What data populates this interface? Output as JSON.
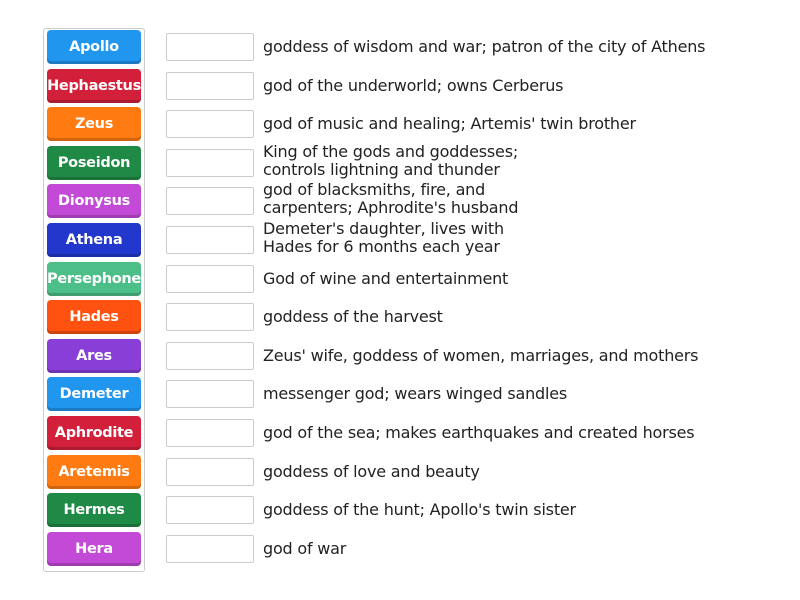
{
  "tiles": [
    {
      "label": "Apollo",
      "color": "#2196ef"
    },
    {
      "label": "Hephaestus",
      "color": "#d2203a"
    },
    {
      "label": "Zeus",
      "color": "#ff7a10"
    },
    {
      "label": "Poseidon",
      "color": "#1f8a45"
    },
    {
      "label": "Dionysus",
      "color": "#c24ad6"
    },
    {
      "label": "Athena",
      "color": "#2238cc"
    },
    {
      "label": "Persephone",
      "color": "#4cbf88"
    },
    {
      "label": "Hades",
      "color": "#ff5210"
    },
    {
      "label": "Ares",
      "color": "#8a3ed8"
    },
    {
      "label": "Demeter",
      "color": "#2196ef"
    },
    {
      "label": "Aphrodite",
      "color": "#d2203a"
    },
    {
      "label": "Aretemis",
      "color": "#ff7a10"
    },
    {
      "label": "Hermes",
      "color": "#1f8a45"
    },
    {
      "label": "Hera",
      "color": "#c24ad6"
    }
  ],
  "descriptions": [
    "goddess of wisdom and war; patron of the city of Athens",
    "god of the underworld; owns Cerberus",
    "god of music and healing; Artemis' twin brother",
    "King of the gods and goddesses; controls lightning and thunder",
    "god of blacksmiths, fire, and carpenters; Aphrodite's husband",
    "Demeter's daughter, lives with Hades for 6 months each year",
    "God of wine and entertainment",
    "goddess of the harvest",
    "Zeus' wife, goddess of women, marriages, and mothers",
    "messenger god; wears winged sandles",
    "god of the sea; makes earthquakes and created horses",
    "goddess of love and beauty",
    "goddess of the hunt; Apollo's twin sister",
    "god of war"
  ]
}
